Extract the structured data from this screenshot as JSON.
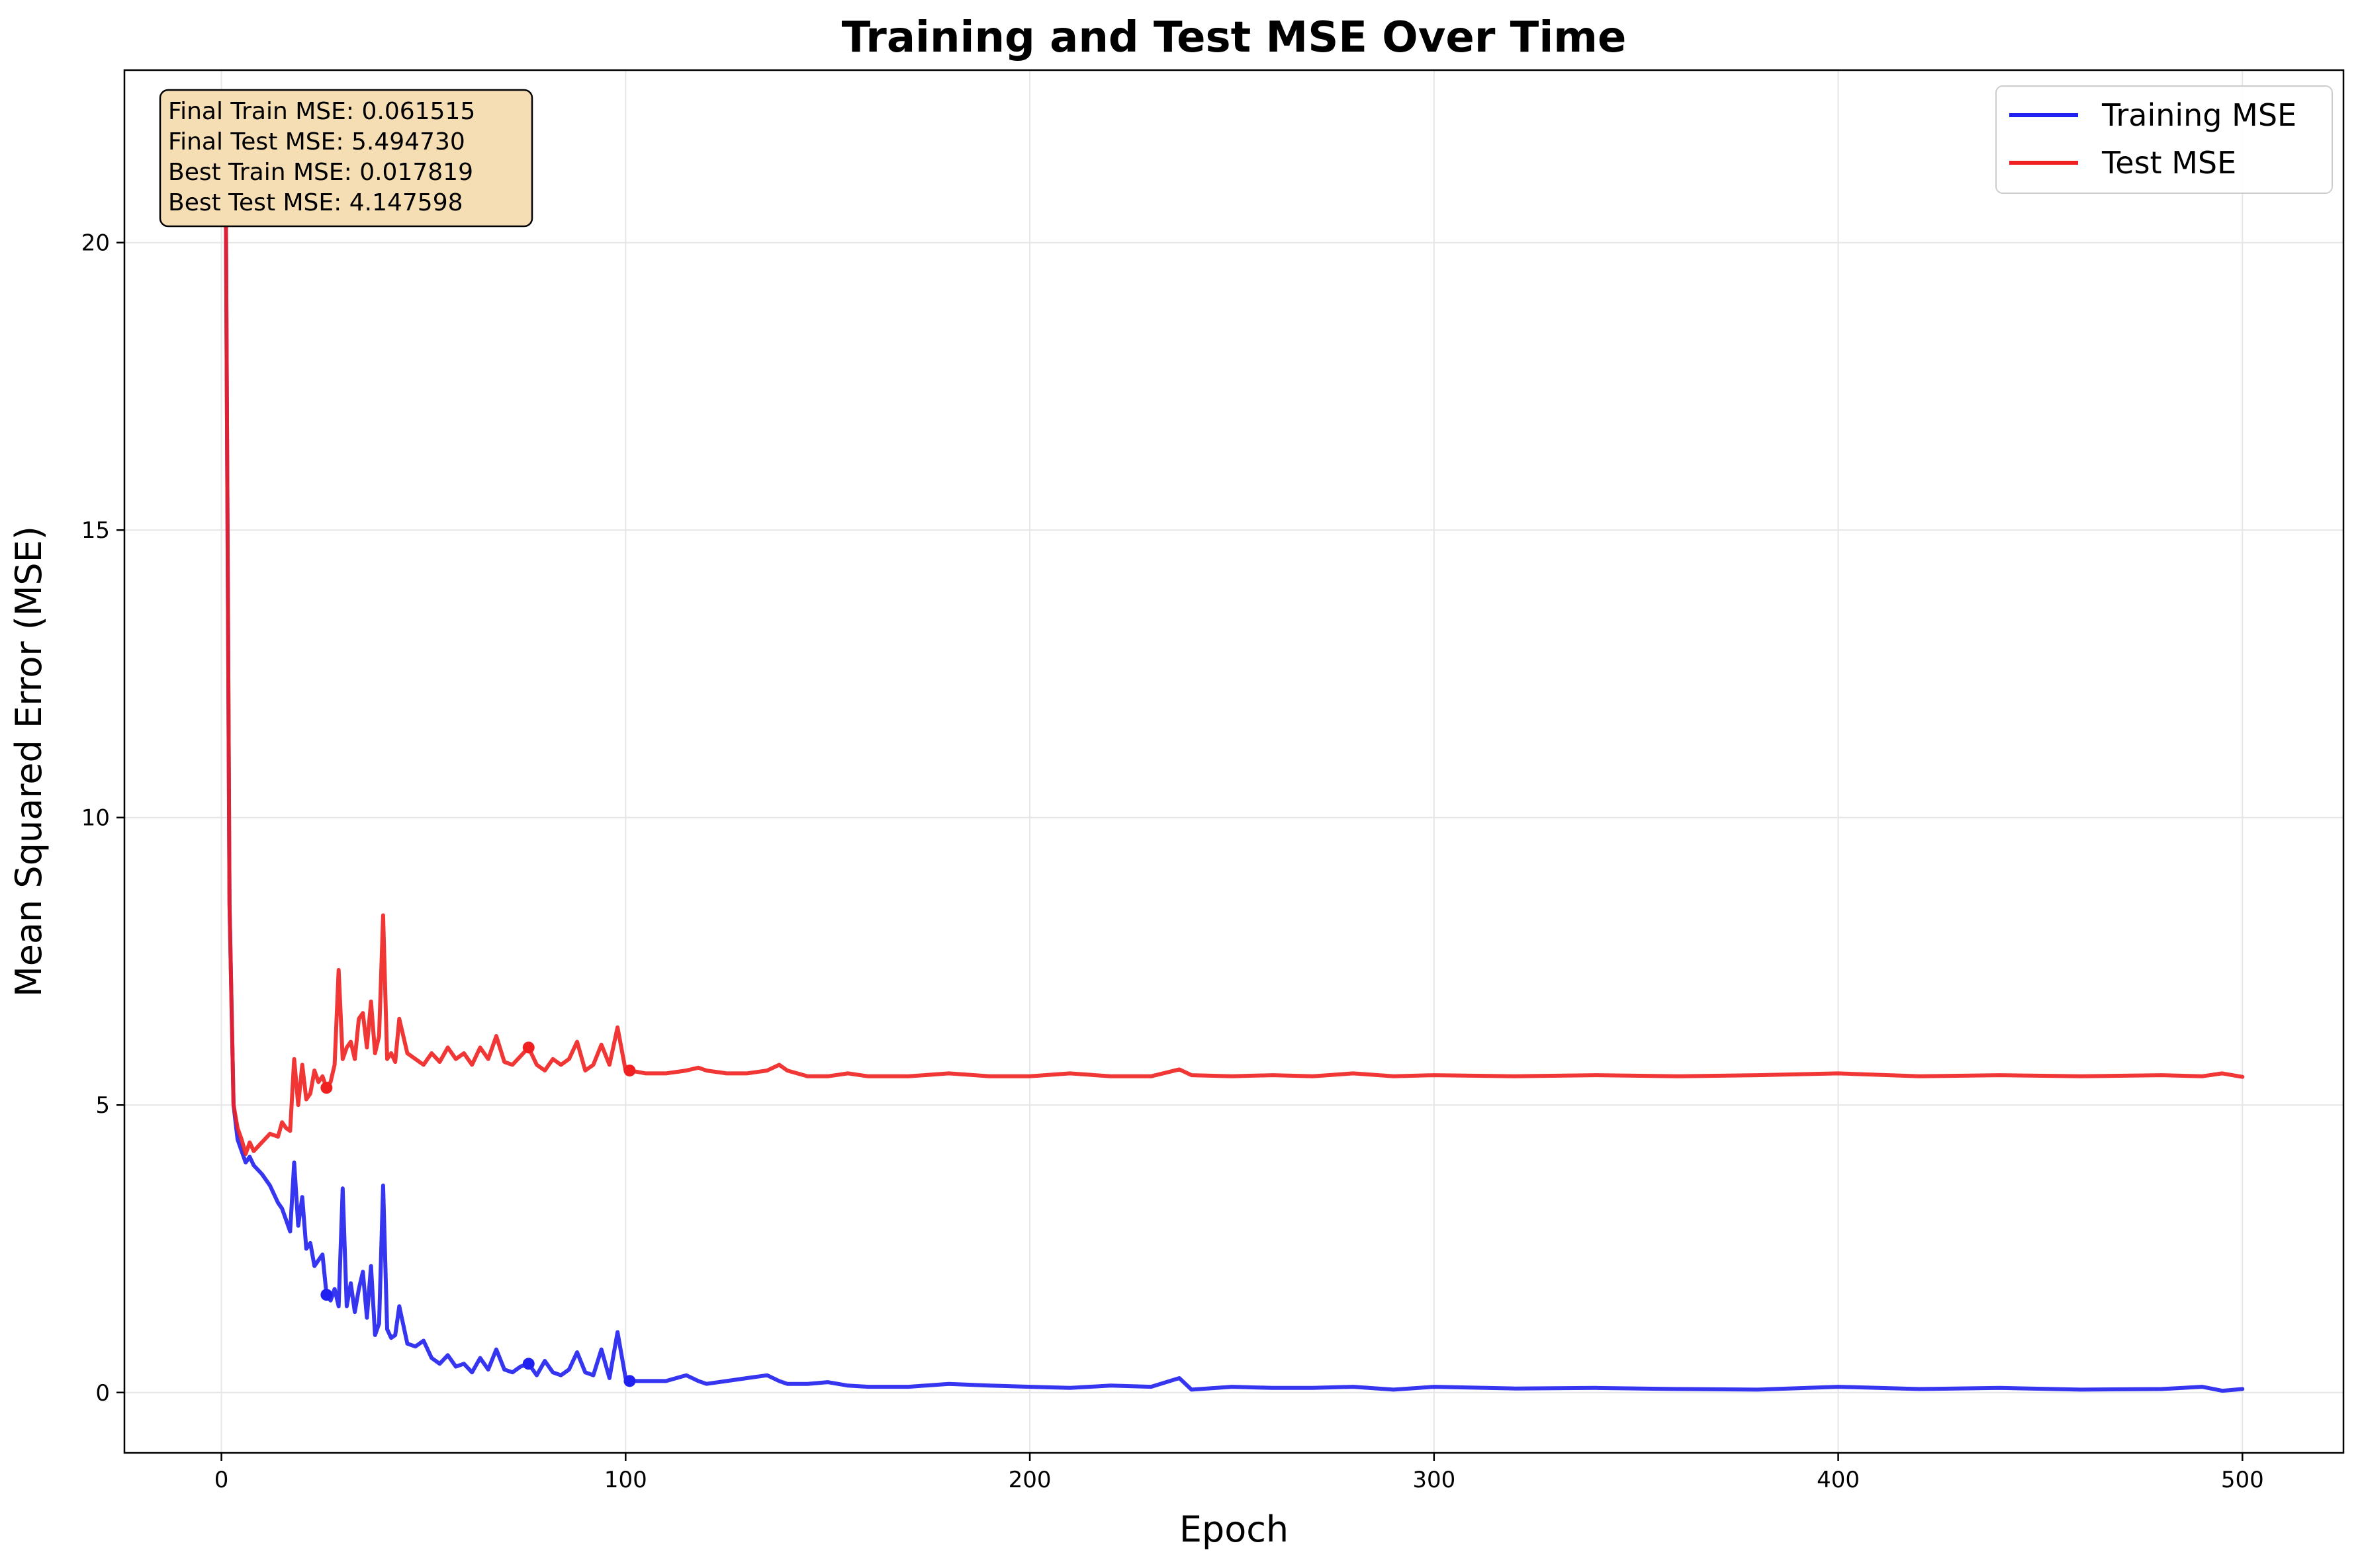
{
  "chart_data": {
    "type": "line",
    "title": "Training and Test MSE Over Time",
    "xlabel": "Epoch",
    "ylabel": "Mean Squared Error (MSE)",
    "xlim": [
      -24,
      525
    ],
    "ylim": [
      -1.05,
      23
    ],
    "xticks": [
      0,
      100,
      200,
      300,
      400,
      500
    ],
    "yticks": [
      0,
      5,
      10,
      15,
      20
    ],
    "grid": true,
    "legend_position": "top-right",
    "stats_box": [
      "Final Train MSE: 0.061515",
      "Final Test MSE: 5.494730",
      "Best Train MSE: 0.017819",
      "Best Test MSE: 4.147598"
    ],
    "series": [
      {
        "name": "Training MSE",
        "color": "#2020f0",
        "x": [
          1,
          2,
          3,
          4,
          5,
          6,
          7,
          8,
          10,
          12,
          14,
          15,
          16,
          17,
          18,
          19,
          20,
          21,
          22,
          23,
          24,
          25,
          26,
          27,
          28,
          29,
          30,
          31,
          32,
          33,
          34,
          35,
          36,
          37,
          38,
          39,
          40,
          41,
          42,
          43,
          44,
          46,
          48,
          50,
          52,
          54,
          56,
          58,
          60,
          62,
          64,
          66,
          68,
          70,
          72,
          74,
          76,
          78,
          80,
          82,
          84,
          86,
          88,
          90,
          92,
          94,
          96,
          98,
          100,
          101,
          105,
          110,
          115,
          118,
          120,
          125,
          130,
          135,
          138,
          140,
          145,
          150,
          155,
          160,
          170,
          180,
          190,
          200,
          210,
          220,
          230,
          237,
          240,
          250,
          260,
          270,
          280,
          290,
          300,
          320,
          340,
          360,
          380,
          400,
          420,
          440,
          460,
          480,
          490,
          495,
          500
        ],
        "y": [
          21.9,
          8.5,
          5.0,
          4.4,
          4.2,
          4.0,
          4.1,
          3.95,
          3.8,
          3.6,
          3.3,
          3.2,
          3.0,
          2.8,
          4.0,
          2.9,
          3.4,
          2.5,
          2.6,
          2.2,
          2.3,
          2.4,
          1.7,
          1.6,
          1.8,
          1.5,
          3.55,
          1.5,
          1.9,
          1.4,
          1.8,
          2.1,
          1.3,
          2.2,
          1.0,
          1.2,
          3.6,
          1.1,
          0.95,
          1.0,
          1.5,
          0.85,
          0.8,
          0.9,
          0.6,
          0.5,
          0.65,
          0.45,
          0.5,
          0.35,
          0.6,
          0.4,
          0.75,
          0.4,
          0.35,
          0.45,
          0.5,
          0.3,
          0.55,
          0.35,
          0.3,
          0.4,
          0.7,
          0.35,
          0.3,
          0.75,
          0.25,
          1.05,
          0.25,
          0.2,
          0.2,
          0.2,
          0.3,
          0.2,
          0.15,
          0.2,
          0.25,
          0.3,
          0.2,
          0.15,
          0.15,
          0.18,
          0.12,
          0.1,
          0.1,
          0.15,
          0.12,
          0.1,
          0.08,
          0.12,
          0.1,
          0.25,
          0.05,
          0.1,
          0.08,
          0.08,
          0.1,
          0.05,
          0.1,
          0.07,
          0.08,
          0.06,
          0.05,
          0.1,
          0.06,
          0.08,
          0.05,
          0.06,
          0.1,
          0.03,
          0.06
        ]
      },
      {
        "name": "Test MSE",
        "color": "#f02020",
        "x": [
          1,
          2,
          3,
          4,
          5,
          6,
          7,
          8,
          10,
          12,
          14,
          15,
          16,
          17,
          18,
          19,
          20,
          21,
          22,
          23,
          24,
          25,
          26,
          27,
          28,
          29,
          30,
          31,
          32,
          33,
          34,
          35,
          36,
          37,
          38,
          39,
          40,
          41,
          42,
          43,
          44,
          46,
          48,
          50,
          52,
          54,
          56,
          58,
          60,
          62,
          64,
          66,
          68,
          70,
          72,
          74,
          76,
          78,
          80,
          82,
          84,
          86,
          88,
          90,
          92,
          94,
          96,
          98,
          100,
          101,
          105,
          110,
          115,
          118,
          120,
          125,
          130,
          135,
          138,
          140,
          145,
          150,
          155,
          160,
          170,
          180,
          190,
          200,
          210,
          220,
          230,
          237,
          240,
          250,
          260,
          270,
          280,
          290,
          300,
          320,
          340,
          360,
          380,
          400,
          420,
          440,
          460,
          480,
          490,
          495,
          500
        ],
        "y": [
          21.9,
          8.5,
          5.0,
          4.6,
          4.4,
          4.15,
          4.35,
          4.2,
          4.35,
          4.5,
          4.45,
          4.7,
          4.6,
          4.55,
          5.8,
          5.0,
          5.7,
          5.1,
          5.2,
          5.6,
          5.4,
          5.5,
          5.3,
          5.4,
          5.7,
          7.35,
          5.8,
          6.0,
          6.1,
          5.8,
          6.5,
          6.6,
          6.0,
          6.8,
          5.9,
          6.2,
          8.3,
          5.8,
          5.9,
          5.75,
          6.5,
          5.9,
          5.8,
          5.7,
          5.9,
          5.75,
          6.0,
          5.8,
          5.9,
          5.7,
          6.0,
          5.8,
          6.2,
          5.75,
          5.7,
          5.85,
          6.0,
          5.7,
          5.6,
          5.8,
          5.7,
          5.8,
          6.1,
          5.6,
          5.7,
          6.05,
          5.7,
          6.35,
          5.6,
          5.6,
          5.55,
          5.55,
          5.6,
          5.65,
          5.6,
          5.55,
          5.55,
          5.6,
          5.7,
          5.6,
          5.5,
          5.5,
          5.55,
          5.5,
          5.5,
          5.55,
          5.5,
          5.5,
          5.55,
          5.5,
          5.5,
          5.62,
          5.52,
          5.5,
          5.52,
          5.5,
          5.55,
          5.5,
          5.52,
          5.5,
          5.52,
          5.5,
          5.52,
          5.55,
          5.5,
          5.52,
          5.5,
          5.52,
          5.5,
          5.55,
          5.49
        ]
      }
    ]
  }
}
